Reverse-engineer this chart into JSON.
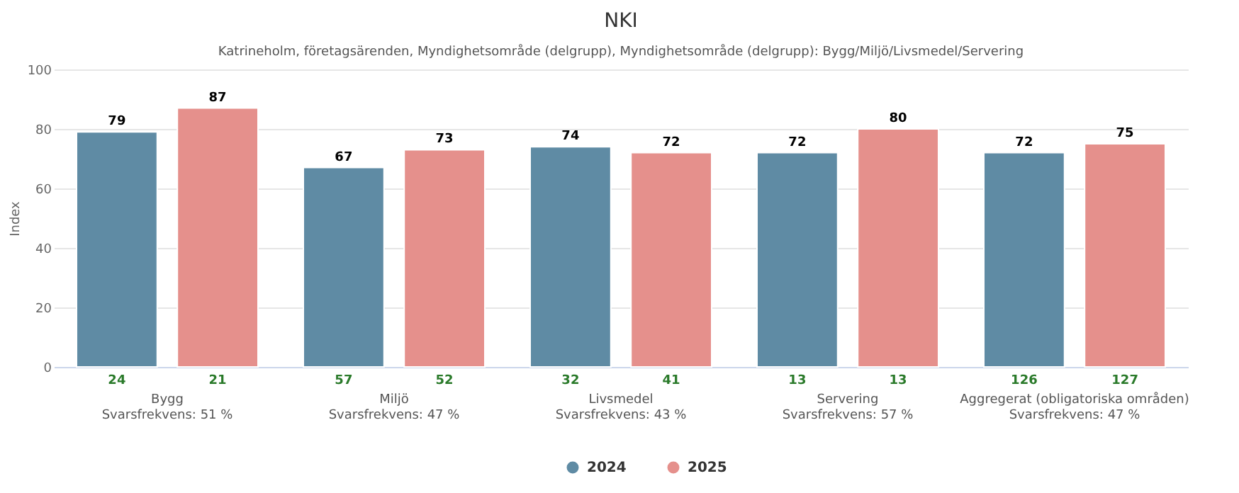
{
  "chart_data": {
    "type": "bar",
    "title": "NKI",
    "subtitle": "Katrineholm, företagsärenden, Myndighetsområde (delgrupp), Myndighetsområde (delgrupp): Bygg/Miljö/Livsmedel/Servering",
    "ylabel": "Index",
    "categories": [
      "Bygg\nSvarsfrekvens: 51 %",
      "Miljö\nSvarsfrekvens: 47 %",
      "Livsmedel\nSvarsfrekvens: 43 %",
      "Servering\nSvarsfrekvens: 57 %",
      "Aggregerat (obligatoriska områden)\nSvarsfrekvens: 47 %"
    ],
    "series": [
      {
        "name": "2024",
        "color": "#5f8ba4",
        "values": [
          79,
          67,
          74,
          72,
          72
        ]
      },
      {
        "name": "2025",
        "color": "#e5908c",
        "values": [
          87,
          73,
          72,
          80,
          75
        ]
      }
    ],
    "annotations": [
      "24",
      "21",
      "57",
      "52",
      "32",
      "41",
      "13",
      "13",
      "126",
      "127"
    ],
    "ylim": [
      0,
      100
    ],
    "yticks": [
      0,
      20,
      40,
      60,
      80,
      100
    ],
    "grid": "y",
    "legend": "bottom",
    "data_labels": true
  }
}
